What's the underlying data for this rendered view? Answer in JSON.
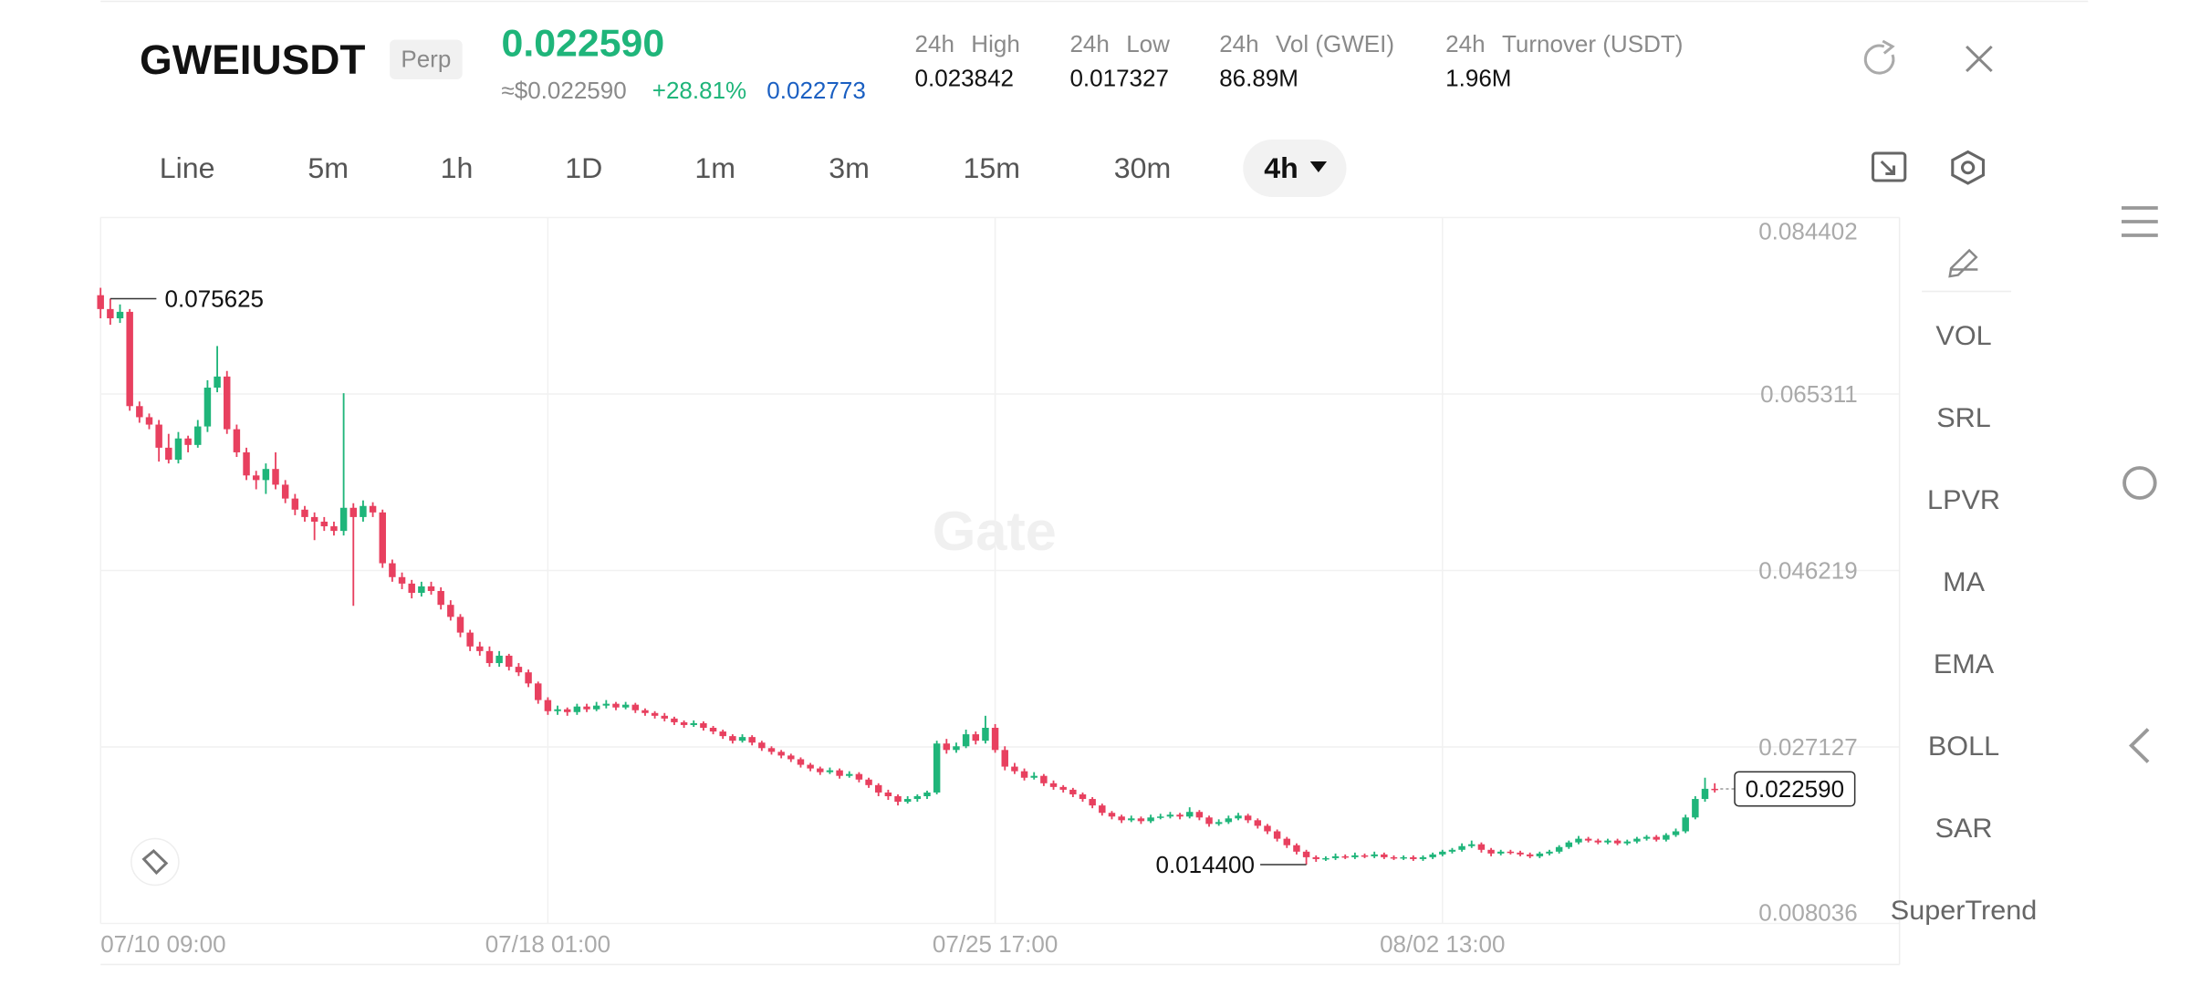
{
  "header": {
    "symbol": "GWEIUSDT",
    "badge": "Perp",
    "price": "0.022590",
    "usd_price": "≈$0.022590",
    "change": "+28.81%",
    "mark_price": "0.022773",
    "stats": [
      {
        "period": "24h",
        "label": "High",
        "value": "0.023842"
      },
      {
        "period": "24h",
        "label": "Low",
        "value": "0.017327"
      },
      {
        "period": "24h",
        "label": "Vol (GWEI)",
        "value": "86.89M"
      },
      {
        "period": "24h",
        "label": "Turnover (USDT)",
        "value": "1.96M"
      }
    ]
  },
  "toolbar": {
    "tabs": [
      "Line",
      "5m",
      "1h",
      "1D",
      "1m",
      "3m",
      "15m",
      "30m"
    ],
    "selected": "4h"
  },
  "side_panel": [
    "VOL",
    "SRL",
    "LPVR",
    "MA",
    "EMA",
    "BOLL",
    "SAR",
    "SuperTrend"
  ],
  "watermark": "Gate",
  "chart_data": {
    "type": "candlestick",
    "up_color": "#1fb57a",
    "down_color": "#e8405f",
    "grid": true,
    "ylim": [
      0.008036,
      0.084402
    ],
    "yticks": [
      0.084402,
      0.065311,
      0.046219,
      0.027127,
      0.008036
    ],
    "xlim": [
      0,
      185
    ],
    "xticks": [
      {
        "value": 0,
        "label": "07/10 09:00"
      },
      {
        "value": 46,
        "label": "07/18 01:00"
      },
      {
        "value": 92,
        "label": "07/25 17:00"
      },
      {
        "value": 138,
        "label": "08/02 13:00"
      }
    ],
    "annotations": [
      {
        "index": 1,
        "value": 0.075625,
        "label": "0.075625"
      },
      {
        "index": 124,
        "value": 0.0144,
        "label": "0.014400"
      }
    ],
    "last_price": {
      "value": 0.02259,
      "label": "0.022590"
    },
    "candles": [
      [
        0.076,
        0.0768,
        0.0735,
        0.0745
      ],
      [
        0.0745,
        0.075625,
        0.0728,
        0.0735
      ],
      [
        0.0735,
        0.075,
        0.073,
        0.0742
      ],
      [
        0.0742,
        0.0745,
        0.0635,
        0.064
      ],
      [
        0.064,
        0.0645,
        0.0622,
        0.0628
      ],
      [
        0.0628,
        0.0632,
        0.0615,
        0.062
      ],
      [
        0.062,
        0.0625,
        0.058,
        0.0595
      ],
      [
        0.0595,
        0.061,
        0.0578,
        0.0582
      ],
      [
        0.0582,
        0.0612,
        0.0578,
        0.0605
      ],
      [
        0.0605,
        0.0608,
        0.059,
        0.0598
      ],
      [
        0.0598,
        0.0625,
        0.0595,
        0.0618
      ],
      [
        0.0618,
        0.0668,
        0.0612,
        0.066
      ],
      [
        0.066,
        0.0705,
        0.0655,
        0.0672
      ],
      [
        0.0672,
        0.0678,
        0.061,
        0.0615
      ],
      [
        0.0615,
        0.062,
        0.0585,
        0.059
      ],
      [
        0.059,
        0.0595,
        0.056,
        0.0565
      ],
      [
        0.0565,
        0.057,
        0.055,
        0.056
      ],
      [
        0.056,
        0.0578,
        0.0545,
        0.0572
      ],
      [
        0.0572,
        0.059,
        0.055,
        0.0555
      ],
      [
        0.0555,
        0.056,
        0.0535,
        0.054
      ],
      [
        0.054,
        0.0545,
        0.0522,
        0.0528
      ],
      [
        0.0528,
        0.0532,
        0.0515,
        0.052
      ],
      [
        0.052,
        0.0525,
        0.0495,
        0.0515
      ],
      [
        0.0515,
        0.052,
        0.0505,
        0.051
      ],
      [
        0.051,
        0.0515,
        0.05,
        0.0505
      ],
      [
        0.0505,
        0.0654,
        0.05,
        0.053
      ],
      [
        0.053,
        0.0535,
        0.0424,
        0.052
      ],
      [
        0.052,
        0.0538,
        0.0515,
        0.0532
      ],
      [
        0.0532,
        0.0536,
        0.052,
        0.0525
      ],
      [
        0.0525,
        0.0528,
        0.0465,
        0.047
      ],
      [
        0.047,
        0.0474,
        0.045,
        0.0455
      ],
      [
        0.0455,
        0.046,
        0.0442,
        0.0448
      ],
      [
        0.0448,
        0.0452,
        0.0432,
        0.0438
      ],
      [
        0.0438,
        0.045,
        0.0434,
        0.0445
      ],
      [
        0.0445,
        0.045,
        0.0436,
        0.044
      ],
      [
        0.044,
        0.0444,
        0.042,
        0.0425
      ],
      [
        0.0425,
        0.043,
        0.0408,
        0.0412
      ],
      [
        0.0412,
        0.0415,
        0.039,
        0.0395
      ],
      [
        0.0395,
        0.0398,
        0.0375,
        0.038
      ],
      [
        0.038,
        0.0385,
        0.037,
        0.0375
      ],
      [
        0.0375,
        0.038,
        0.0358,
        0.0362
      ],
      [
        0.0362,
        0.0375,
        0.0358,
        0.037
      ],
      [
        0.037,
        0.0372,
        0.0354,
        0.0358
      ],
      [
        0.0358,
        0.0362,
        0.0348,
        0.0352
      ],
      [
        0.0352,
        0.0355,
        0.0336,
        0.034
      ],
      [
        0.034,
        0.0342,
        0.0318,
        0.0322
      ],
      [
        0.0322,
        0.0325,
        0.0306,
        0.031
      ],
      [
        0.031,
        0.0316,
        0.0306,
        0.0312
      ],
      [
        0.0312,
        0.0314,
        0.0305,
        0.0309
      ],
      [
        0.0309,
        0.0318,
        0.0306,
        0.0315
      ],
      [
        0.0315,
        0.0318,
        0.0309,
        0.0312
      ],
      [
        0.0312,
        0.032,
        0.031,
        0.0316
      ],
      [
        0.0316,
        0.0322,
        0.0313,
        0.0318
      ],
      [
        0.0318,
        0.032,
        0.0311,
        0.0314
      ],
      [
        0.0314,
        0.032,
        0.0312,
        0.0317
      ],
      [
        0.0317,
        0.0319,
        0.0308,
        0.0311
      ],
      [
        0.0311,
        0.0313,
        0.0305,
        0.0308
      ],
      [
        0.0308,
        0.031,
        0.0302,
        0.0305
      ],
      [
        0.0305,
        0.0308,
        0.0299,
        0.0302
      ],
      [
        0.0302,
        0.0304,
        0.0295,
        0.0298
      ],
      [
        0.0298,
        0.03,
        0.0292,
        0.0295
      ],
      [
        0.0295,
        0.03,
        0.0293,
        0.0297
      ],
      [
        0.0297,
        0.0299,
        0.0289,
        0.0292
      ],
      [
        0.0292,
        0.0294,
        0.0285,
        0.0288
      ],
      [
        0.0288,
        0.029,
        0.028,
        0.0283
      ],
      [
        0.0283,
        0.0285,
        0.0275,
        0.0278
      ],
      [
        0.0278,
        0.0285,
        0.0276,
        0.0282
      ],
      [
        0.0282,
        0.0284,
        0.0273,
        0.0276
      ],
      [
        0.0276,
        0.0278,
        0.0267,
        0.027
      ],
      [
        0.027,
        0.0272,
        0.0263,
        0.0266
      ],
      [
        0.0266,
        0.0268,
        0.0259,
        0.0262
      ],
      [
        0.0262,
        0.0264,
        0.0255,
        0.0258
      ],
      [
        0.0258,
        0.026,
        0.0249,
        0.0252
      ],
      [
        0.0252,
        0.0254,
        0.0245,
        0.0248
      ],
      [
        0.0248,
        0.025,
        0.0241,
        0.0244
      ],
      [
        0.0244,
        0.0249,
        0.0242,
        0.0246
      ],
      [
        0.0246,
        0.0248,
        0.0237,
        0.024
      ],
      [
        0.024,
        0.0245,
        0.0238,
        0.0242
      ],
      [
        0.0242,
        0.0244,
        0.0233,
        0.0236
      ],
      [
        0.0236,
        0.0238,
        0.0227,
        0.023
      ],
      [
        0.023,
        0.0232,
        0.0218,
        0.0222
      ],
      [
        0.0222,
        0.0225,
        0.0214,
        0.0218
      ],
      [
        0.0218,
        0.022,
        0.0208,
        0.0212
      ],
      [
        0.0212,
        0.0218,
        0.021,
        0.0215
      ],
      [
        0.0215,
        0.022,
        0.0212,
        0.0218
      ],
      [
        0.0218,
        0.0224,
        0.0215,
        0.0222
      ],
      [
        0.0222,
        0.0278,
        0.022,
        0.0275
      ],
      [
        0.0275,
        0.028,
        0.0264,
        0.0268
      ],
      [
        0.0268,
        0.0276,
        0.0265,
        0.0272
      ],
      [
        0.0272,
        0.029,
        0.027,
        0.0285
      ],
      [
        0.0285,
        0.0288,
        0.0274,
        0.0278
      ],
      [
        0.0278,
        0.0305,
        0.0275,
        0.0292
      ],
      [
        0.0292,
        0.0296,
        0.0265,
        0.0268
      ],
      [
        0.0268,
        0.0272,
        0.0246,
        0.025
      ],
      [
        0.025,
        0.0254,
        0.0242,
        0.0245
      ],
      [
        0.0245,
        0.0248,
        0.0235,
        0.0238
      ],
      [
        0.0238,
        0.0244,
        0.0236,
        0.024
      ],
      [
        0.024,
        0.0242,
        0.0229,
        0.0232
      ],
      [
        0.0232,
        0.0235,
        0.0225,
        0.0228
      ],
      [
        0.0228,
        0.023,
        0.0222,
        0.0225
      ],
      [
        0.0225,
        0.0227,
        0.0217,
        0.022
      ],
      [
        0.022,
        0.0222,
        0.0212,
        0.0215
      ],
      [
        0.0215,
        0.0217,
        0.0205,
        0.0208
      ],
      [
        0.0208,
        0.021,
        0.0197,
        0.02
      ],
      [
        0.02,
        0.0202,
        0.0193,
        0.0196
      ],
      [
        0.0196,
        0.0198,
        0.0189,
        0.0192
      ],
      [
        0.0192,
        0.0197,
        0.019,
        0.0194
      ],
      [
        0.0194,
        0.0196,
        0.0188,
        0.0191
      ],
      [
        0.0191,
        0.0198,
        0.0189,
        0.0195
      ],
      [
        0.0195,
        0.0199,
        0.0193,
        0.0196
      ],
      [
        0.0196,
        0.0201,
        0.0194,
        0.0198
      ],
      [
        0.0198,
        0.02,
        0.0193,
        0.0196
      ],
      [
        0.0196,
        0.0206,
        0.0194,
        0.0201
      ],
      [
        0.0201,
        0.0203,
        0.0192,
        0.0195
      ],
      [
        0.0195,
        0.0197,
        0.0185,
        0.0188
      ],
      [
        0.0188,
        0.0193,
        0.0186,
        0.019
      ],
      [
        0.019,
        0.0197,
        0.0188,
        0.0194
      ],
      [
        0.0194,
        0.02,
        0.0192,
        0.0197
      ],
      [
        0.0197,
        0.0199,
        0.0189,
        0.0192
      ],
      [
        0.0192,
        0.0194,
        0.0183,
        0.0186
      ],
      [
        0.0186,
        0.0188,
        0.0177,
        0.018
      ],
      [
        0.018,
        0.0182,
        0.0169,
        0.0172
      ],
      [
        0.0172,
        0.0174,
        0.0162,
        0.0165
      ],
      [
        0.0165,
        0.0167,
        0.0155,
        0.0158
      ],
      [
        0.0158,
        0.016,
        0.0144,
        0.0152
      ],
      [
        0.0152,
        0.0154,
        0.0147,
        0.015
      ],
      [
        0.015,
        0.0153,
        0.0148,
        0.0151
      ],
      [
        0.0151,
        0.0156,
        0.0149,
        0.0153
      ],
      [
        0.0153,
        0.0155,
        0.015,
        0.0152
      ],
      [
        0.0152,
        0.0157,
        0.015,
        0.0154
      ],
      [
        0.0154,
        0.0156,
        0.0151,
        0.0153
      ],
      [
        0.0153,
        0.0158,
        0.0151,
        0.0155
      ],
      [
        0.0155,
        0.0157,
        0.015,
        0.0152
      ],
      [
        0.0152,
        0.0154,
        0.0149,
        0.0151
      ],
      [
        0.0151,
        0.0154,
        0.0149,
        0.0152
      ],
      [
        0.0152,
        0.0154,
        0.0148,
        0.015
      ],
      [
        0.015,
        0.0154,
        0.0148,
        0.0152
      ],
      [
        0.0152,
        0.0157,
        0.015,
        0.0155
      ],
      [
        0.0155,
        0.016,
        0.0153,
        0.0158
      ],
      [
        0.0158,
        0.0162,
        0.0156,
        0.016
      ],
      [
        0.016,
        0.0167,
        0.0158,
        0.0164
      ],
      [
        0.0164,
        0.017,
        0.0162,
        0.0166
      ],
      [
        0.0166,
        0.0168,
        0.0157,
        0.016
      ],
      [
        0.016,
        0.0162,
        0.0153,
        0.0156
      ],
      [
        0.0156,
        0.016,
        0.0154,
        0.0158
      ],
      [
        0.0158,
        0.016,
        0.0155,
        0.0157
      ],
      [
        0.0157,
        0.0159,
        0.0153,
        0.0155
      ],
      [
        0.0155,
        0.0157,
        0.0151,
        0.0153
      ],
      [
        0.0153,
        0.0158,
        0.0151,
        0.0156
      ],
      [
        0.0156,
        0.016,
        0.0154,
        0.0158
      ],
      [
        0.0158,
        0.0165,
        0.0156,
        0.0163
      ],
      [
        0.0163,
        0.017,
        0.0161,
        0.0168
      ],
      [
        0.0168,
        0.0175,
        0.0166,
        0.0172
      ],
      [
        0.0172,
        0.0174,
        0.0168,
        0.017
      ],
      [
        0.017,
        0.0172,
        0.0166,
        0.0168
      ],
      [
        0.0168,
        0.0172,
        0.0166,
        0.017
      ],
      [
        0.017,
        0.0172,
        0.0165,
        0.0167
      ],
      [
        0.0167,
        0.0171,
        0.0165,
        0.0169
      ],
      [
        0.0169,
        0.0174,
        0.0167,
        0.0172
      ],
      [
        0.0172,
        0.0176,
        0.017,
        0.0174
      ],
      [
        0.0174,
        0.0176,
        0.0169,
        0.0171
      ],
      [
        0.0171,
        0.0178,
        0.0169,
        0.0176
      ],
      [
        0.0176,
        0.0183,
        0.0174,
        0.018
      ],
      [
        0.018,
        0.0198,
        0.0178,
        0.0195
      ],
      [
        0.0195,
        0.0218,
        0.0193,
        0.0215
      ],
      [
        0.0215,
        0.0238,
        0.0212,
        0.0226
      ],
      [
        0.0226,
        0.0232,
        0.0222,
        0.02259
      ]
    ]
  }
}
